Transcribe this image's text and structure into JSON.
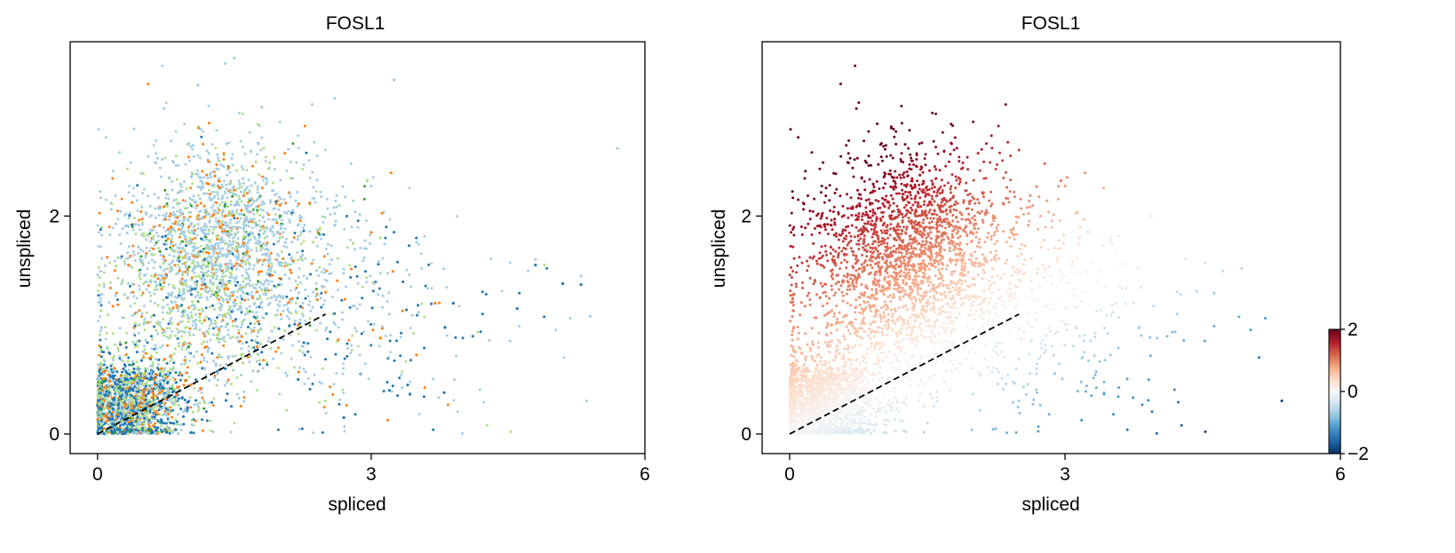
{
  "chart_data": [
    {
      "type": "scatter",
      "title": "FOSL1",
      "xlabel": "spliced",
      "ylabel": "unspliced",
      "xlim": [
        -0.3,
        6.0
      ],
      "ylim": [
        -0.18,
        3.6
      ],
      "xticks": [
        {
          "value": 0,
          "label": "0"
        },
        {
          "value": 3,
          "label": "3"
        },
        {
          "value": 6,
          "label": "6"
        }
      ],
      "yticks": [
        {
          "value": 0,
          "label": "0"
        },
        {
          "value": 2,
          "label": "2"
        }
      ],
      "grid": false,
      "color_by": "cell group (categorical)",
      "palette": [
        "#a6cee3",
        "#1f78b4",
        "#b2df8a",
        "#ff7f0e",
        "#33a02c"
      ],
      "fit_line": {
        "style": "dashed",
        "color": "#000000",
        "x": [
          0,
          2.5
        ],
        "y": [
          0,
          1.1
        ]
      },
      "groups": [
        {
          "color": "#a6cee3",
          "points": [
            [
              0.05,
              0.2
            ],
            [
              0.3,
              0.35
            ],
            [
              0.6,
              0.45
            ],
            [
              1.0,
              1.6
            ],
            [
              1.3,
              1.9
            ],
            [
              1.6,
              2.3
            ],
            [
              2.0,
              1.8
            ],
            [
              1.2,
              2.6
            ],
            [
              0.9,
              1.3
            ],
            [
              2.4,
              1.5
            ],
            [
              3.2,
              1.1
            ],
            [
              3.9,
              1.2
            ],
            [
              4.8,
              1.6
            ],
            [
              5.3,
              1.45
            ],
            [
              5.7,
              2.62
            ],
            [
              5.4,
              1.08
            ],
            [
              1.4,
              3.4
            ],
            [
              1.5,
              3.45
            ],
            [
              2.6,
              3.08
            ],
            [
              3.25,
              3.25
            ],
            [
              1.8,
              3.0
            ],
            [
              0.4,
              2.8
            ],
            [
              1.1,
              3.2
            ]
          ]
        },
        {
          "color": "#1f78b4",
          "points": [
            [
              0.05,
              0.05
            ],
            [
              0.3,
              0.1
            ],
            [
              0.7,
              0.25
            ],
            [
              1.0,
              0.3
            ],
            [
              1.4,
              0.6
            ],
            [
              1.8,
              0.75
            ],
            [
              2.2,
              0.5
            ],
            [
              2.7,
              0.15
            ],
            [
              3.2,
              0.4
            ],
            [
              3.4,
              0.45
            ],
            [
              3.8,
              0.38
            ],
            [
              4.8,
              1.55
            ],
            [
              5.1,
              1.38
            ],
            [
              5.3,
              1.37
            ],
            [
              4.6,
              1.15
            ],
            [
              3.9,
              1.2
            ]
          ]
        },
        {
          "color": "#b2df8a",
          "points": [
            [
              0.05,
              0.3
            ],
            [
              0.2,
              0.4
            ],
            [
              0.5,
              0.55
            ],
            [
              0.8,
              0.9
            ],
            [
              1.1,
              1.3
            ],
            [
              1.4,
              1.1
            ],
            [
              1.6,
              1.4
            ],
            [
              2.0,
              1.8
            ],
            [
              2.8,
              1.75
            ],
            [
              3.1,
              1.8
            ],
            [
              4.9,
              1.55
            ]
          ]
        },
        {
          "color": "#ff7f0e",
          "points": [
            [
              0.1,
              0.15
            ],
            [
              0.3,
              0.25
            ],
            [
              0.5,
              0.4
            ],
            [
              0.7,
              0.6
            ],
            [
              1.0,
              1.9
            ],
            [
              1.2,
              2.3
            ],
            [
              1.4,
              2.0
            ],
            [
              1.6,
              1.75
            ],
            [
              2.0,
              2.1
            ],
            [
              0.9,
              1.5
            ],
            [
              2.2,
              1.0
            ],
            [
              2.5,
              1.3
            ],
            [
              3.0,
              1.85
            ],
            [
              3.7,
              1.2
            ],
            [
              3.1,
              0.88
            ]
          ]
        },
        {
          "color": "#33a02c",
          "points": [
            [
              0.4,
              0.5
            ],
            [
              1.3,
              1.3
            ],
            [
              2.0,
              2.0
            ],
            [
              1.0,
              0.8
            ]
          ]
        }
      ]
    },
    {
      "type": "scatter",
      "title": "FOSL1",
      "xlabel": "spliced",
      "ylabel": "unspliced",
      "xlim": [
        -0.3,
        6.0
      ],
      "ylim": [
        -0.18,
        3.6
      ],
      "xticks": [
        {
          "value": 0,
          "label": "0"
        },
        {
          "value": 3,
          "label": "3"
        },
        {
          "value": 6,
          "label": "6"
        }
      ],
      "yticks": [
        {
          "value": 0,
          "label": "0"
        },
        {
          "value": 2,
          "label": "2"
        }
      ],
      "grid": false,
      "color_by": "continuous value (residual)",
      "colormap": "RdBu_r",
      "colorbar": {
        "min": -2,
        "max": 2,
        "ticks": [
          {
            "value": 2,
            "label": "2"
          },
          {
            "value": 0,
            "label": "0"
          },
          {
            "value": -2,
            "label": "−2"
          }
        ]
      },
      "fit_line": {
        "style": "dashed",
        "color": "#000000",
        "x": [
          0,
          2.5
        ],
        "y": [
          0,
          1.1
        ]
      },
      "cmap_colors": [
        "#053061",
        "#2166ac",
        "#4393c3",
        "#92c5de",
        "#d1e5f0",
        "#f7f7f7",
        "#fddbc7",
        "#f4a582",
        "#d6604d",
        "#b2182b",
        "#67001f"
      ]
    }
  ]
}
